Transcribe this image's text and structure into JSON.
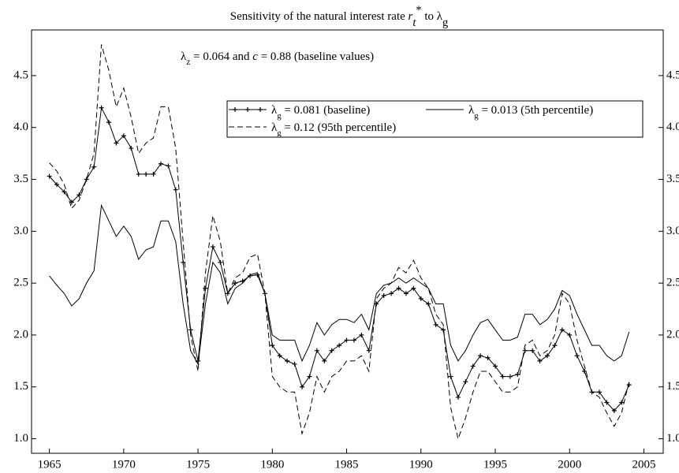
{
  "chart_data": {
    "type": "line",
    "title": [
      "Sensitivity of  the natural interest rate ",
      "r",
      "t",
      "*",
      " to λ",
      "g"
    ],
    "subtitle": [
      "λ",
      "z",
      " = 0.064 and ",
      "c",
      " = 0.88 (baseline values)"
    ],
    "x": [
      1965,
      1965.5,
      1966,
      1966.5,
      1967,
      1967.5,
      1968,
      1968.5,
      1969,
      1969.5,
      1970,
      1970.5,
      1971,
      1971.5,
      1972,
      1972.5,
      1973,
      1973.5,
      1974,
      1974.5,
      1975,
      1975.5,
      1976,
      1976.5,
      1977,
      1977.5,
      1978,
      1978.5,
      1979,
      1979.5,
      1980,
      1980.5,
      1981,
      1981.5,
      1982,
      1982.5,
      1983,
      1983.5,
      1984,
      1984.5,
      1985,
      1985.5,
      1986,
      1986.5,
      1987,
      1987.5,
      1988,
      1988.5,
      1989,
      1989.5,
      1990,
      1990.5,
      1991,
      1991.5,
      1992,
      1992.5,
      1993,
      1993.5,
      1994,
      1994.5,
      1995,
      1995.5,
      1996,
      1996.5,
      1997,
      1997.5,
      1998,
      1998.5,
      1999,
      1999.5,
      2000,
      2000.5,
      2001,
      2001.5,
      2002,
      2002.5,
      2003,
      2003.5,
      2004
    ],
    "series": [
      {
        "name": [
          "λ",
          "g",
          " = 0.081 (baseline)"
        ],
        "color": "#000000",
        "style": "solid",
        "marker": "+",
        "values": [
          3.53,
          3.45,
          3.38,
          3.28,
          3.35,
          3.5,
          3.62,
          4.19,
          4.05,
          3.85,
          3.92,
          3.8,
          3.55,
          3.55,
          3.55,
          3.65,
          3.63,
          3.4,
          2.7,
          2.05,
          1.75,
          2.45,
          2.85,
          2.7,
          2.4,
          2.5,
          2.52,
          2.57,
          2.58,
          2.4,
          1.9,
          1.8,
          1.75,
          1.72,
          1.5,
          1.6,
          1.85,
          1.75,
          1.85,
          1.9,
          1.95,
          1.95,
          2.0,
          1.85,
          2.3,
          2.38,
          2.4,
          2.45,
          2.4,
          2.45,
          2.35,
          2.3,
          2.1,
          2.05,
          1.6,
          1.4,
          1.55,
          1.7,
          1.8,
          1.78,
          1.7,
          1.6,
          1.6,
          1.62,
          1.85,
          1.85,
          1.75,
          1.8,
          1.9,
          2.05,
          2.0,
          1.8,
          1.65,
          1.45,
          1.45,
          1.35,
          1.27,
          1.35,
          1.52
        ]
      },
      {
        "name": [
          "λ",
          "g",
          " = 0.013 (5th percentile)"
        ],
        "color": "#000000",
        "style": "solid",
        "values": [
          2.57,
          2.48,
          2.4,
          2.28,
          2.35,
          2.5,
          2.62,
          3.25,
          3.1,
          2.95,
          3.05,
          2.95,
          2.73,
          2.82,
          2.85,
          3.1,
          3.1,
          2.9,
          2.3,
          1.85,
          1.72,
          2.3,
          2.7,
          2.6,
          2.3,
          2.45,
          2.5,
          2.58,
          2.6,
          2.4,
          2.0,
          1.95,
          1.95,
          1.95,
          1.75,
          1.9,
          2.12,
          2.0,
          2.1,
          2.15,
          2.15,
          2.12,
          2.2,
          2.05,
          2.4,
          2.48,
          2.5,
          2.55,
          2.5,
          2.55,
          2.5,
          2.45,
          2.3,
          2.3,
          1.9,
          1.75,
          1.85,
          2.0,
          2.12,
          2.15,
          2.05,
          1.95,
          1.95,
          1.98,
          2.2,
          2.2,
          2.1,
          2.15,
          2.25,
          2.43,
          2.38,
          2.2,
          2.05,
          1.9,
          1.9,
          1.8,
          1.75,
          1.8,
          2.03
        ]
      },
      {
        "name": [
          "λ",
          "g",
          " = 0.12 (95th percentile)"
        ],
        "color": "#000000",
        "style": "dashed",
        "values": [
          3.66,
          3.58,
          3.45,
          3.22,
          3.3,
          3.5,
          3.75,
          4.8,
          4.55,
          4.2,
          4.38,
          4.1,
          3.75,
          3.85,
          3.9,
          4.2,
          4.2,
          3.8,
          2.9,
          2.0,
          1.65,
          2.6,
          3.15,
          2.9,
          2.4,
          2.55,
          2.6,
          2.75,
          2.78,
          2.4,
          1.6,
          1.5,
          1.45,
          1.45,
          1.05,
          1.25,
          1.6,
          1.45,
          1.6,
          1.65,
          1.75,
          1.75,
          1.8,
          1.65,
          2.35,
          2.45,
          2.5,
          2.65,
          2.6,
          2.72,
          2.55,
          2.45,
          2.2,
          2.1,
          1.3,
          1.0,
          1.2,
          1.45,
          1.65,
          1.65,
          1.55,
          1.45,
          1.45,
          1.5,
          1.9,
          1.95,
          1.8,
          1.85,
          2.0,
          2.4,
          2.3,
          1.95,
          1.7,
          1.45,
          1.4,
          1.25,
          1.12,
          1.25,
          1.55
        ]
      }
    ],
    "xlim": [
      1963.8,
      2006.3
    ],
    "xticks": [
      1965,
      1970,
      1975,
      1980,
      1985,
      1990,
      1995,
      2000,
      2005
    ],
    "ylim": [
      0.86,
      4.94
    ],
    "yticks": [
      {
        "value": 1,
        "label": "1.0"
      },
      1.5,
      {
        "value": 2,
        "label": "2.0"
      },
      2.5,
      {
        "value": 3,
        "label": "3.0"
      },
      3.5,
      {
        "value": 4,
        "label": "4.0"
      },
      4.5
    ],
    "legend": "upper right"
  }
}
